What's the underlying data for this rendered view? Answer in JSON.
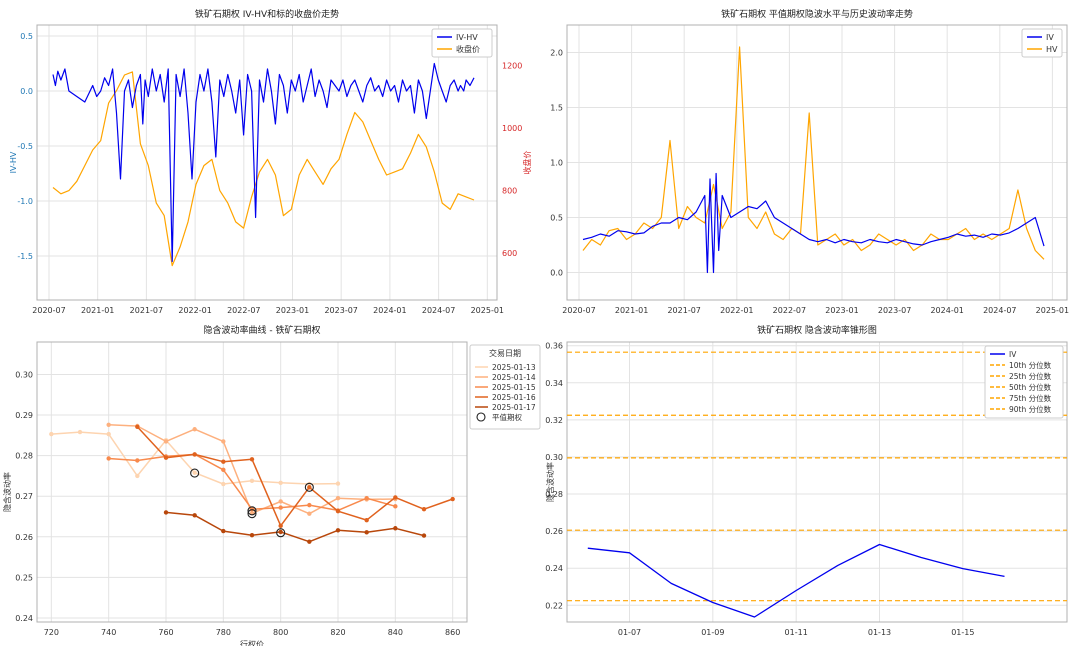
{
  "chart_data": [
    {
      "type": "line",
      "title": "铁矿石期权 IV-HV和标的收盘价走势",
      "xlabel": "",
      "ylabel": "IV-HV",
      "y2label": "收盘价",
      "x_ticks": [
        "2020-07",
        "2021-01",
        "2021-07",
        "2022-01",
        "2022-07",
        "2023-01",
        "2023-07",
        "2024-01",
        "2024-07",
        "2025-01"
      ],
      "y_ticks": [
        "0.5",
        "0.0",
        "-0.5",
        "-1.0",
        "-1.5"
      ],
      "y2_ticks": [
        "1200",
        "1000",
        "800",
        "600"
      ],
      "ylim": [
        -1.9,
        0.6
      ],
      "y2lim": [
        450,
        1330
      ],
      "legend": [
        "IV-HV",
        "收盘价"
      ],
      "colors": {
        "iv_hv": "#0000ee",
        "close": "#ffa500",
        "left_axis": "#1f77b4",
        "right_axis": "#d62728"
      },
      "series": [
        {
          "name": "IV-HV",
          "x": [
            0,
            0.3,
            0.6,
            1,
            1.5,
            2,
            3,
            4,
            5,
            5.5,
            6,
            6.5,
            7,
            7.5,
            8,
            8.5,
            9,
            9.5,
            10,
            10.5,
            11,
            11.3,
            11.6,
            12,
            12.5,
            13,
            13.5,
            14,
            14.5,
            15,
            15.5,
            16,
            16.5,
            17,
            17.5,
            18,
            18.5,
            19,
            19.5,
            20,
            20.5,
            21,
            21.5,
            22,
            22.5,
            23,
            23.5,
            24,
            24.5,
            25,
            25.5,
            26,
            26.5,
            27,
            27.5,
            28,
            28.5,
            29,
            29.5,
            30,
            30.5,
            31,
            31.5,
            32,
            32.5,
            33,
            33.5,
            34,
            34.5,
            35,
            35.5,
            36,
            36.5,
            37,
            37.5,
            38,
            38.5,
            39,
            39.5,
            40,
            40.5,
            41,
            41.5,
            42,
            42.5,
            43,
            43.5,
            44,
            44.5,
            45,
            45.5,
            46,
            46.5,
            47,
            47.5,
            48,
            48.5,
            49,
            49.5,
            50,
            50.5,
            51,
            51.3,
            51.7,
            52,
            52.5,
            53
          ],
          "values": [
            0.15,
            0.05,
            0.18,
            0.1,
            0.2,
            0.0,
            -0.05,
            -0.1,
            0.05,
            -0.05,
            0.0,
            0.12,
            0.05,
            0.2,
            -0.2,
            -0.8,
            0.0,
            0.1,
            -0.15,
            0.05,
            0.15,
            -0.3,
            0.1,
            -0.05,
            0.2,
            0.0,
            0.15,
            -0.1,
            0.2,
            -1.55,
            0.15,
            -0.05,
            0.2,
            -0.2,
            -0.8,
            -0.1,
            0.15,
            0.0,
            0.2,
            -0.1,
            -0.6,
            0.1,
            -0.05,
            0.15,
            0.0,
            -0.2,
            0.1,
            -0.4,
            0.15,
            0.0,
            -1.15,
            0.1,
            -0.1,
            0.2,
            0.0,
            -0.3,
            0.15,
            0.05,
            -0.2,
            0.1,
            0.0,
            0.15,
            -0.1,
            0.05,
            0.2,
            -0.05,
            0.1,
            0.0,
            -0.15,
            0.1,
            0.05,
            0.0,
            0.1,
            -0.05,
            0.05,
            0.1,
            0.0,
            -0.1,
            0.05,
            0.12,
            0.0,
            0.05,
            -0.05,
            0.1,
            0.0,
            0.05,
            -0.1,
            0.1,
            0.0,
            0.05,
            -0.2,
            0.1,
            0.0,
            -0.25,
            0.0,
            0.25,
            0.1,
            0.0,
            -0.1,
            0.05,
            0.1,
            0.0,
            0.05,
            0.0,
            0.1,
            0.05,
            0.12
          ]
        },
        {
          "name": "收盘价",
          "x": [
            0,
            1,
            2,
            3,
            4,
            5,
            6,
            7,
            8,
            9,
            10,
            11,
            12,
            13,
            14,
            15,
            16,
            17,
            18,
            19,
            20,
            21,
            22,
            23,
            24,
            25,
            26,
            27,
            28,
            29,
            30,
            31,
            32,
            33,
            34,
            35,
            36,
            37,
            38,
            39,
            40,
            41,
            42,
            43,
            44,
            45,
            46,
            47,
            48,
            49,
            50,
            51,
            52,
            53
          ],
          "values": [
            810,
            790,
            800,
            830,
            880,
            930,
            960,
            1080,
            1120,
            1170,
            1180,
            950,
            880,
            760,
            720,
            560,
            620,
            700,
            820,
            880,
            900,
            800,
            760,
            700,
            680,
            780,
            860,
            900,
            850,
            720,
            740,
            850,
            900,
            860,
            820,
            870,
            900,
            980,
            1050,
            1020,
            960,
            900,
            850,
            860,
            870,
            920,
            980,
            940,
            860,
            760,
            740,
            790,
            780,
            770
          ]
        }
      ]
    },
    {
      "type": "line",
      "title": "铁矿石期权 平值期权隐波水平与历史波动率走势",
      "xlabel": "",
      "ylabel": "",
      "x_ticks": [
        "2020-07",
        "2021-01",
        "2021-07",
        "2022-01",
        "2022-07",
        "2023-01",
        "2023-07",
        "2024-01",
        "2024-07",
        "2025-01"
      ],
      "y_ticks": [
        "0.0",
        "0.5",
        "1.0",
        "1.5",
        "2.0"
      ],
      "ylim": [
        -0.25,
        2.25
      ],
      "legend": [
        "IV",
        "HV"
      ],
      "colors": {
        "iv": "#0000ee",
        "hv": "#ffa500"
      },
      "series": [
        {
          "name": "IV",
          "x": [
            0,
            1,
            2,
            3,
            4,
            5,
            6,
            7,
            8,
            9,
            10,
            11,
            12,
            13,
            14,
            14.3,
            14.6,
            15,
            15.3,
            15.6,
            16,
            17,
            18,
            19,
            20,
            21,
            22,
            23,
            24,
            25,
            26,
            27,
            28,
            29,
            30,
            31,
            32,
            33,
            34,
            35,
            36,
            37,
            38,
            39,
            40,
            41,
            42,
            43,
            44,
            45,
            46,
            47,
            48,
            49,
            50,
            51,
            52,
            53
          ],
          "values": [
            0.3,
            0.32,
            0.35,
            0.33,
            0.38,
            0.37,
            0.35,
            0.36,
            0.42,
            0.45,
            0.45,
            0.5,
            0.48,
            0.55,
            0.7,
            0.0,
            0.85,
            0.0,
            0.9,
            0.2,
            0.7,
            0.5,
            0.55,
            0.6,
            0.58,
            0.65,
            0.5,
            0.45,
            0.4,
            0.35,
            0.3,
            0.28,
            0.3,
            0.27,
            0.3,
            0.28,
            0.27,
            0.3,
            0.28,
            0.27,
            0.3,
            0.28,
            0.26,
            0.25,
            0.28,
            0.3,
            0.32,
            0.35,
            0.33,
            0.34,
            0.32,
            0.35,
            0.34,
            0.36,
            0.4,
            0.45,
            0.5,
            0.24
          ]
        },
        {
          "name": "HV",
          "x": [
            0,
            1,
            2,
            3,
            4,
            5,
            6,
            7,
            8,
            9,
            10,
            11,
            12,
            13,
            14,
            15,
            16,
            17,
            18,
            19,
            20,
            21,
            22,
            23,
            24,
            25,
            26,
            27,
            28,
            29,
            30,
            31,
            32,
            33,
            34,
            35,
            36,
            37,
            38,
            39,
            40,
            41,
            42,
            43,
            44,
            45,
            46,
            47,
            48,
            49,
            50,
            51,
            52,
            53
          ],
          "values": [
            0.2,
            0.3,
            0.25,
            0.38,
            0.4,
            0.3,
            0.35,
            0.45,
            0.4,
            0.5,
            1.2,
            0.4,
            0.6,
            0.5,
            0.45,
            0.8,
            0.4,
            0.55,
            2.05,
            0.5,
            0.4,
            0.55,
            0.35,
            0.3,
            0.4,
            0.35,
            1.45,
            0.25,
            0.3,
            0.35,
            0.25,
            0.3,
            0.2,
            0.25,
            0.35,
            0.3,
            0.25,
            0.3,
            0.2,
            0.25,
            0.35,
            0.3,
            0.3,
            0.35,
            0.4,
            0.3,
            0.35,
            0.3,
            0.35,
            0.4,
            0.75,
            0.4,
            0.2,
            0.12
          ]
        }
      ]
    },
    {
      "type": "line",
      "title": "隐含波动率曲线 - 铁矿石期权",
      "xlabel": "行权价",
      "ylabel": "隐含波动率",
      "x_ticks": [
        "720",
        "740",
        "760",
        "780",
        "800",
        "820",
        "840",
        "860"
      ],
      "y_ticks": [
        "0.30",
        "0.29",
        "0.28",
        "0.27",
        "0.26",
        "0.25",
        "0.24"
      ],
      "xlim": [
        715,
        865
      ],
      "ylim": [
        0.239,
        0.308
      ],
      "legend_title": "交易日期",
      "legend": [
        "2025-01-13",
        "2025-01-14",
        "2025-01-15",
        "2025-01-16",
        "2025-01-17",
        "平值期权"
      ],
      "series": [
        {
          "name": "2025-01-13",
          "color": "#fdd4b0",
          "x": [
            720,
            730,
            740,
            750,
            760,
            770,
            780,
            790,
            800,
            810,
            820
          ],
          "values": [
            0.2853,
            0.2858,
            0.2853,
            0.275,
            0.2838,
            0.2758,
            0.273,
            0.2738,
            0.2733,
            0.273,
            0.2731
          ]
        },
        {
          "name": "2025-01-14",
          "color": "#fdb07e",
          "x": [
            740,
            750,
            760,
            770,
            780,
            790,
            800,
            810,
            820,
            830,
            840
          ],
          "values": [
            0.2876,
            0.2873,
            0.2835,
            0.2865,
            0.2835,
            0.2658,
            0.2687,
            0.2657,
            0.2695,
            0.2692,
            0.2693
          ]
        },
        {
          "name": "2025-01-15",
          "color": "#f88a4d",
          "x": [
            740,
            750,
            760,
            770,
            780,
            790,
            800,
            810,
            820,
            830,
            840
          ],
          "values": [
            0.2793,
            0.2788,
            0.2798,
            0.2803,
            0.2765,
            0.2668,
            0.2672,
            0.2678,
            0.2665,
            0.2695,
            0.2675
          ]
        },
        {
          "name": "2025-01-16",
          "color": "#e0621e",
          "x": [
            750,
            760,
            770,
            780,
            790,
            800,
            810,
            820,
            830,
            840,
            850,
            860
          ],
          "values": [
            0.2871,
            0.2795,
            0.2803,
            0.2785,
            0.2791,
            0.2627,
            0.2722,
            0.2663,
            0.2641,
            0.2697,
            0.2668,
            0.2693
          ]
        },
        {
          "name": "2025-01-17",
          "color": "#b8470b",
          "x": [
            760,
            770,
            780,
            790,
            800,
            810,
            820,
            830,
            840,
            850
          ],
          "values": [
            0.266,
            0.2653,
            0.2614,
            0.2604,
            0.2612,
            0.2588,
            0.2616,
            0.2611,
            0.2621,
            0.2603
          ]
        }
      ],
      "atm": [
        {
          "x": 770,
          "y": 0.2757
        },
        {
          "x": 790,
          "y": 0.2664
        },
        {
          "x": 790,
          "y": 0.2657
        },
        {
          "x": 800,
          "y": 0.261
        },
        {
          "x": 810,
          "y": 0.2722
        }
      ]
    },
    {
      "type": "line",
      "title": "铁矿石期权 隐含波动率锥形图",
      "xlabel": "",
      "ylabel": "隐含波动率",
      "x_ticks": [
        "01-07",
        "01-09",
        "01-11",
        "01-13",
        "01-15"
      ],
      "y_ticks": [
        "0.36",
        "0.34",
        "0.32",
        "0.30",
        "0.28",
        "0.26",
        "0.24",
        "0.22"
      ],
      "xlim": [
        0.5,
        12.5
      ],
      "ylim": [
        0.211,
        0.362
      ],
      "legend": [
        "IV",
        "10th 分位数",
        "25th 分位数",
        "50th 分位数",
        "75th 分位数",
        "90th 分位数"
      ],
      "colors": {
        "iv": "#0000ee",
        "quantile": "#ffa500"
      },
      "series": [
        {
          "name": "IV",
          "x": [
            1,
            2,
            3,
            4,
            5,
            6,
            7,
            8,
            9,
            10,
            11
          ],
          "values": [
            0.2508,
            0.2483,
            0.2318,
            0.2215,
            0.2137,
            0.228,
            0.2415,
            0.2528,
            0.2458,
            0.2398,
            0.2356
          ]
        }
      ],
      "quantiles": [
        0.2225,
        0.2605,
        0.2995,
        0.3225,
        0.3565
      ]
    }
  ]
}
